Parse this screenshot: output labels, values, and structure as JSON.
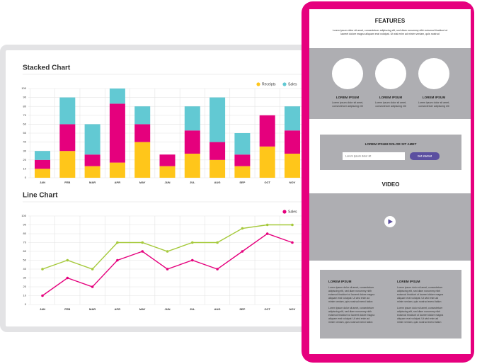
{
  "chart_data": [
    {
      "type": "bar",
      "stacked": true,
      "title": "Stacked Chart",
      "categories": [
        "JAN",
        "FEB",
        "MAR",
        "APR",
        "MAY",
        "JUN",
        "JUL",
        "AUG",
        "SEP",
        "OCT",
        "NOV"
      ],
      "series": [
        {
          "name": "Receipts",
          "color": "#ffc61a",
          "values": [
            10,
            30,
            13,
            17,
            40,
            13,
            27,
            20,
            13,
            35,
            27
          ]
        },
        {
          "color": "#e5007d",
          "values": [
            10,
            30,
            13,
            66,
            20,
            13,
            26,
            20,
            13,
            35,
            26
          ]
        },
        {
          "name": "Sales",
          "color": "#62c9d3",
          "values": [
            10,
            30,
            34,
            17,
            20,
            0,
            27,
            50,
            24,
            0,
            27
          ]
        }
      ],
      "ylim": [
        0,
        100
      ],
      "yticks": [
        0,
        10,
        20,
        30,
        40,
        50,
        60,
        70,
        80,
        90,
        100
      ],
      "grid": true
    },
    {
      "type": "line",
      "title": "Line Chart",
      "categories": [
        "JAN",
        "FEB",
        "MAR",
        "APR",
        "MAY",
        "JUN",
        "JUL",
        "AUG",
        "SEP",
        "OCT",
        "NOV"
      ],
      "series": [
        {
          "color": "#a5c93b",
          "values": [
            40,
            50,
            40,
            70,
            70,
            60,
            70,
            70,
            86,
            90,
            90
          ]
        },
        {
          "name": "Sales",
          "color": "#e5007d",
          "values": [
            10,
            30,
            20,
            50,
            60,
            40,
            50,
            40,
            60,
            80,
            70
          ]
        }
      ],
      "ylim": [
        0,
        100
      ],
      "yticks": [
        0,
        10,
        20,
        30,
        40,
        50,
        60,
        70,
        80,
        90,
        100
      ],
      "grid": true
    }
  ],
  "tablet": {
    "features": {
      "title": "FEATURES",
      "text": [
        "Lorem ipsum dolor sit amet, consectetuer adipiscing elit, sed diam nonummy nibh euismod tincidunt ut",
        "laoreet dolore magna aliquam erat volutpat. Ut wisi enim ad minim veniam, quis nostrud"
      ],
      "items": [
        {
          "title": "LOREM IPSUM",
          "text": [
            "Lorem ipsum dolor sit amet,",
            "consectetuer adipiscing elit"
          ]
        },
        {
          "title": "LOREM IPSUM",
          "text": [
            "Lorem ipsum dolor sit amet,",
            "consectetuer adipiscing elit"
          ]
        },
        {
          "title": "LOREM IPSUM",
          "text": [
            "Lorem ipsum dolor sit amet,",
            "consectetuer adipiscing elit"
          ]
        }
      ]
    },
    "cta": {
      "title": "LOREM IPSUM DOLOR SIT AMET",
      "placeholder": "Lorem ipsum dolor sit",
      "button": "Get started"
    },
    "video": {
      "title": "VIDEO"
    },
    "columns": [
      {
        "title": "LOREM IPSUM",
        "paragraphs": [
          [
            "Lorem ipsum dolor sit amet, consectetuer",
            "adipiscing elit, sed diam nonummy nibh",
            "euismod tincidunt ut laoreet dolore magna",
            "aliquam erat volutpat. Ut wisi enim ad",
            "minim veniam, quis nostrud exerci tation"
          ],
          [
            "Lorem ipsum dolor sit amet, consectetuer",
            "adipiscing elit, sed diam nonummy nibh",
            "euismod tincidunt ut laoreet dolore magna",
            "aliquam erat volutpat. Ut wisi enim ad",
            "minim veniam, quis nostrud exerci tation"
          ]
        ]
      },
      {
        "title": "LOREM IPSUM",
        "paragraphs": [
          [
            "Lorem ipsum dolor sit amet, consectetuer",
            "adipiscing elit, sed diam nonummy nibh",
            "euismod tincidunt ut laoreet dolore magna",
            "aliquam erat volutpat. Ut wisi enim ad",
            "minim veniam, quis nostrud exerci tation"
          ],
          [
            "Lorem ipsum dolor sit amet, consectetuer",
            "adipiscing elit, sed diam nonummy nibh",
            "euismod tincidunt ut laoreet dolore magna",
            "aliquam erat volutpat. Ut wisi enim ad",
            "minim veniam, quis nostrud exerci tation"
          ]
        ]
      }
    ]
  }
}
